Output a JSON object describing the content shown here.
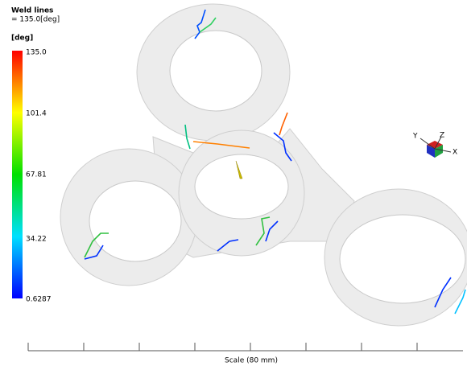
{
  "legend": {
    "title": "Weld lines",
    "subtitle": "= 135.0[deg]",
    "unit": "[deg]",
    "ticks": [
      "135.0",
      "101.4",
      "67.81",
      "34.22",
      "0.6287"
    ]
  },
  "triad": {
    "x": "X",
    "y": "Y",
    "z": "Z"
  },
  "scale": {
    "label": "Scale (80 mm)"
  }
}
